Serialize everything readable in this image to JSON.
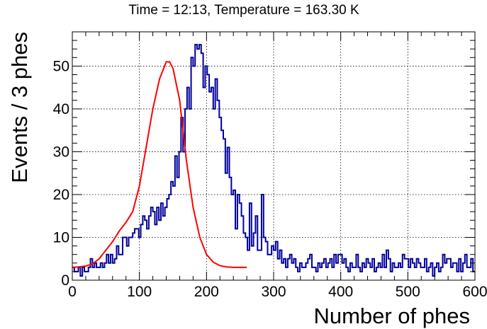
{
  "chart_data": {
    "type": "histogram",
    "title": "Time = 12:13, Temperature = 163.30 K",
    "xlabel": "Number of phes",
    "ylabel": "Events / 3 phes",
    "xlim": [
      0,
      600
    ],
    "ylim": [
      0,
      58
    ],
    "grid": true,
    "bin_width": 3,
    "x_ticks": [
      0,
      100,
      200,
      300,
      400,
      500,
      600
    ],
    "y_ticks": [
      0,
      10,
      20,
      30,
      40,
      50
    ],
    "series": [
      {
        "style": "step",
        "color": "#000099",
        "bin_start": 0,
        "values": [
          3,
          2,
          2,
          3,
          1,
          3,
          2,
          2,
          3,
          5,
          3,
          4,
          3,
          3,
          4,
          3,
          4,
          6,
          4,
          6,
          4,
          5,
          8,
          6,
          6,
          10,
          10,
          8,
          10,
          10,
          11,
          12,
          12,
          10,
          13,
          15,
          14,
          12,
          15,
          17,
          16,
          13,
          17,
          14,
          18,
          15,
          17,
          19,
          20,
          23,
          22,
          29,
          24,
          30,
          38,
          30,
          40,
          45,
          40,
          52,
          50,
          55,
          54,
          55,
          53,
          45,
          50,
          48,
          44,
          45,
          40,
          47,
          42,
          38,
          35,
          33,
          25,
          31,
          24,
          20,
          21,
          12,
          20,
          18,
          15,
          11,
          10,
          7,
          18,
          8,
          11,
          15,
          7,
          7,
          20,
          10,
          9,
          6,
          6,
          8,
          7,
          9,
          5,
          7,
          4,
          5,
          3,
          5,
          6,
          4,
          5,
          3,
          2,
          4,
          3,
          3,
          4,
          5,
          6,
          3,
          3,
          2,
          4,
          3,
          4,
          5,
          3,
          4,
          5,
          3,
          6,
          4,
          6,
          6,
          4,
          5,
          3,
          2,
          4,
          3,
          3,
          6,
          3,
          2,
          4,
          3,
          5,
          4,
          3,
          5,
          2,
          3,
          4,
          3,
          6,
          3,
          7,
          5,
          2,
          4,
          3,
          3,
          4,
          3,
          6,
          5,
          5,
          3,
          5,
          4,
          3,
          5,
          4,
          3,
          3,
          5,
          2,
          3,
          4,
          1,
          3,
          4,
          2,
          3,
          6,
          4,
          5,
          5,
          3,
          4,
          4,
          2,
          5,
          2,
          4,
          6,
          3,
          3,
          5,
          2
        ]
      },
      {
        "style": "line",
        "color": "#ff0000",
        "x": [
          0,
          10,
          20,
          30,
          40,
          50,
          60,
          70,
          80,
          90,
          100,
          110,
          120,
          130,
          140,
          145,
          150,
          160,
          170,
          180,
          190,
          200,
          210,
          220,
          230,
          240,
          250,
          260
        ],
        "y": [
          3,
          3.1,
          3.3,
          3.8,
          5,
          7,
          9,
          11.5,
          13.5,
          16,
          22,
          31,
          40,
          47,
          51,
          51,
          49.5,
          42,
          28,
          17,
          10,
          6,
          4.2,
          3.4,
          3.1,
          3,
          3,
          3
        ]
      }
    ]
  }
}
